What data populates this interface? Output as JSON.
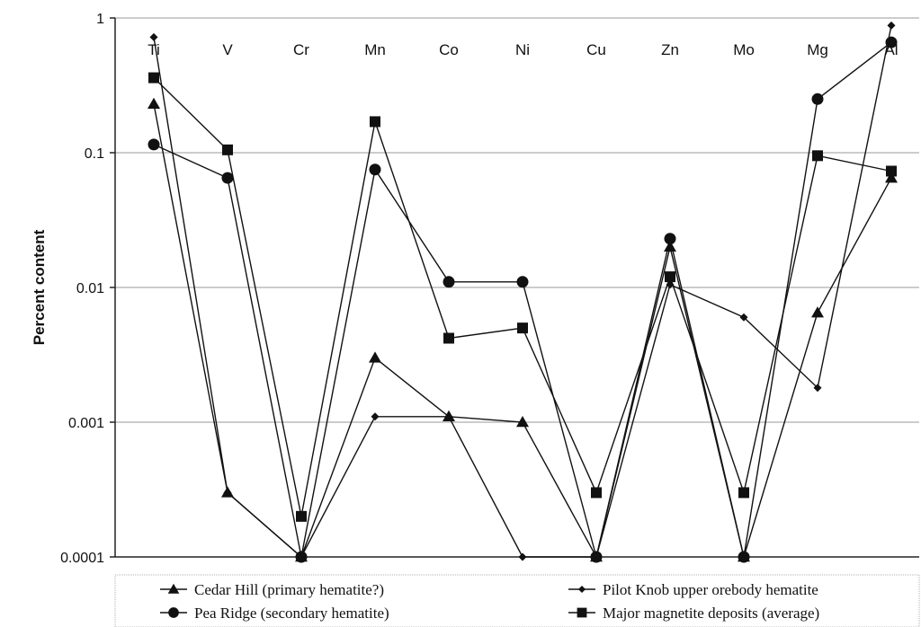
{
  "chart_data": {
    "type": "line",
    "ylabel": "Percent content",
    "xlabel": "",
    "yscale": "log",
    "ylim": [
      0.0001,
      1
    ],
    "yticks": [
      "0.0001",
      "0.001",
      "0.01",
      "0.1",
      "1"
    ],
    "grid": true,
    "legend_position": "bottom",
    "categories": [
      "Ti",
      "V",
      "Cr",
      "Mn",
      "Co",
      "Ni",
      "Cu",
      "Zn",
      "Mo",
      "Mg",
      "Al"
    ],
    "series": [
      {
        "name": "Cedar Hill (primary hematite?)",
        "marker": "triangle",
        "values": [
          0.23,
          0.0003,
          0.0001,
          0.003,
          0.0011,
          0.001,
          0.0001,
          0.02,
          0.0001,
          0.0065,
          0.065
        ]
      },
      {
        "name": "Pilot Knob upper orebody hematite",
        "marker": "diamond",
        "values": [
          0.72,
          0.0003,
          0.0001,
          0.0011,
          0.0011,
          0.0001,
          0.0001,
          0.0105,
          0.006,
          0.0018,
          0.88
        ]
      },
      {
        "name": "Pea Ridge (secondary hematite)",
        "marker": "circle",
        "values": [
          0.115,
          0.065,
          0.0001,
          0.075,
          0.011,
          0.011,
          0.0001,
          0.023,
          0.0001,
          0.25,
          0.66
        ]
      },
      {
        "name": "Major magnetite deposits (average)",
        "marker": "square",
        "values": [
          0.36,
          0.105,
          0.0002,
          0.17,
          0.0042,
          0.005,
          0.0003,
          0.012,
          0.0003,
          0.095,
          0.073
        ]
      }
    ]
  }
}
